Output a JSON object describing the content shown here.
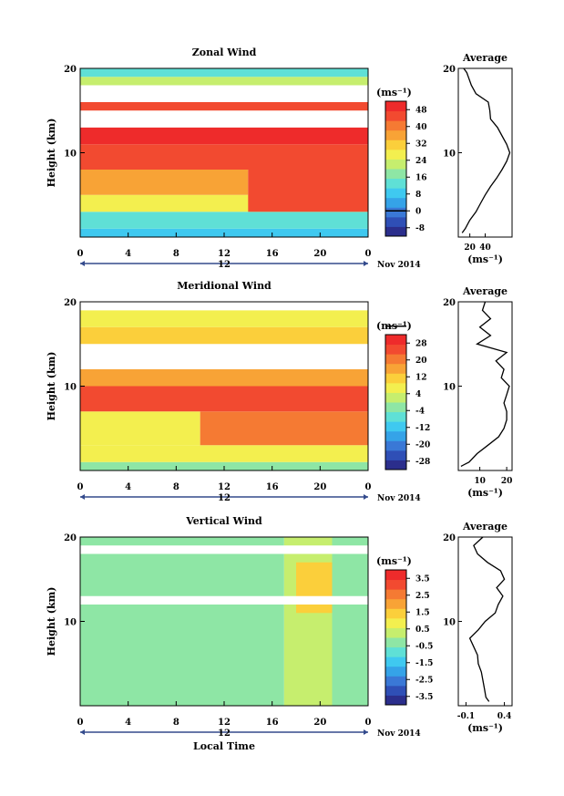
{
  "colors": {
    "scale": [
      "#2b2e8c",
      "#2f4fb6",
      "#3a78d6",
      "#35a3e8",
      "#3fc9f0",
      "#5fe0d6",
      "#8ee6a5",
      "#c6ee6e",
      "#f3ef4f",
      "#fbcf3b",
      "#f8a336",
      "#f57a33",
      "#f24a30",
      "#ee2b2b"
    ]
  },
  "shared": {
    "ylabel": "Height (km)",
    "time_ticks": [
      "0",
      "4",
      "8",
      "12",
      "16",
      "20",
      "0"
    ],
    "day_label": "12",
    "month_label": "Nov 2014",
    "unit_label": "(ms⁻¹)",
    "avg_title": "Average",
    "xlabel_bottom": "Local Time"
  },
  "chart_data": [
    {
      "type": "heatmap",
      "title": "Zonal Wind",
      "x_range": [
        0,
        24
      ],
      "ylim": [
        0,
        20
      ],
      "y_ticks": [
        "20",
        "10"
      ],
      "colorbar_ticks": [
        "48",
        "40",
        "32",
        "24",
        "16",
        "8",
        "0",
        "-8"
      ],
      "colorbar_range": [
        -12,
        52
      ],
      "zero_tick": "0",
      "cells": [
        {
          "t0": 0,
          "t1": 24,
          "z0": 0,
          "z1": 1,
          "v": 8
        },
        {
          "t0": 0,
          "t1": 24,
          "z0": 1,
          "z1": 3,
          "v": 14
        },
        {
          "t0": 0,
          "t1": 24,
          "z0": 3,
          "z1": 5,
          "v": 26
        },
        {
          "t0": 0,
          "t1": 14,
          "z0": 5,
          "z1": 8,
          "v": 34
        },
        {
          "t0": 14,
          "t1": 24,
          "z0": 3,
          "z1": 9,
          "v": 46
        },
        {
          "t0": 0,
          "t1": 24,
          "z0": 8,
          "z1": 11,
          "v": 44
        },
        {
          "t0": 0,
          "t1": 24,
          "z0": 11,
          "z1": 13,
          "v": 49
        },
        {
          "t0": 0,
          "t1": 24,
          "z0": 13,
          "z1": 15,
          "v": -100
        },
        {
          "t0": 0,
          "t1": 24,
          "z0": 15,
          "z1": 16,
          "v": 44
        },
        {
          "t0": 0,
          "t1": 24,
          "z0": 16,
          "z1": 18,
          "v": -100
        },
        {
          "t0": 0,
          "t1": 24,
          "z0": 18,
          "z1": 19,
          "v": 24
        },
        {
          "t0": 0,
          "t1": 24,
          "z0": 19,
          "z1": 20,
          "v": 14
        }
      ],
      "average": {
        "xlim": [
          5,
          75
        ],
        "x_ticks": [
          "20",
          "40"
        ],
        "x_tick_values": [
          20,
          40
        ],
        "xlabel": "(ms⁻¹)",
        "profile_z": [
          0.5,
          1,
          2,
          3,
          4,
          5,
          6,
          7,
          8,
          9,
          10,
          11,
          12,
          13,
          14,
          15,
          16,
          17,
          18,
          19,
          19.5,
          20
        ],
        "profile_v": [
          10,
          14,
          20,
          28,
          34,
          40,
          47,
          55,
          62,
          68,
          72,
          68,
          62,
          56,
          47,
          46,
          44,
          28,
          22,
          18,
          16,
          12
        ]
      }
    },
    {
      "type": "heatmap",
      "title": "Meridional Wind",
      "x_range": [
        0,
        24
      ],
      "ylim": [
        0,
        20
      ],
      "y_ticks": [
        "20",
        "10"
      ],
      "colorbar_ticks": [
        "28",
        "20",
        "12",
        "4",
        "-4",
        "-12",
        "-20",
        "-28"
      ],
      "colorbar_range": [
        -32,
        32
      ],
      "zero_tick": "0",
      "cells": [
        {
          "t0": 0,
          "t1": 24,
          "z0": 0,
          "z1": 1,
          "v": -2
        },
        {
          "t0": 0,
          "t1": 24,
          "z0": 1,
          "z1": 3,
          "v": 6
        },
        {
          "t0": 0,
          "t1": 10,
          "z0": 3,
          "z1": 7,
          "v": 9
        },
        {
          "t0": 10,
          "t1": 24,
          "z0": 3,
          "z1": 7,
          "v": 22
        },
        {
          "t0": 0,
          "t1": 24,
          "z0": 7,
          "z1": 10,
          "v": 27
        },
        {
          "t0": 0,
          "t1": 24,
          "z0": 10,
          "z1": 12,
          "v": 14
        },
        {
          "t0": 0,
          "t1": 24,
          "z0": 12,
          "z1": 15,
          "v": -100
        },
        {
          "t0": 0,
          "t1": 24,
          "z0": 15,
          "z1": 17,
          "v": 12
        },
        {
          "t0": 0,
          "t1": 24,
          "z0": 17,
          "z1": 19,
          "v": 6
        },
        {
          "t0": 0,
          "t1": 24,
          "z0": 19,
          "z1": 20,
          "v": -100
        }
      ],
      "average": {
        "xlim": [
          2,
          22
        ],
        "x_ticks": [
          "10",
          "20"
        ],
        "x_tick_values": [
          10,
          20
        ],
        "xlabel": "(ms⁻¹)",
        "profile_z": [
          0.5,
          1,
          2,
          3,
          4,
          5,
          6,
          7,
          8,
          9,
          10,
          11,
          12,
          13,
          14,
          15,
          16,
          17,
          18,
          19,
          20
        ],
        "profile_v": [
          3,
          6,
          9,
          13,
          17,
          19,
          20,
          20,
          19,
          20,
          21,
          18,
          19,
          16,
          20,
          9,
          14,
          10,
          14,
          11,
          12
        ]
      }
    },
    {
      "type": "heatmap",
      "title": "Vertical Wind",
      "x_range": [
        0,
        24
      ],
      "ylim": [
        0,
        20
      ],
      "y_ticks": [
        "20",
        "10"
      ],
      "colorbar_ticks": [
        "3.5",
        "2.5",
        "1.5",
        "0.5",
        "-0.5",
        "-1.5",
        "-2.5",
        "-3.5"
      ],
      "colorbar_range": [
        -4,
        4
      ],
      "zero_tick": "",
      "cells": [
        {
          "t0": 0,
          "t1": 17,
          "z0": 0,
          "z1": 20,
          "v": -0.4
        },
        {
          "t0": 17,
          "t1": 21,
          "z0": 0,
          "z1": 20,
          "v": 0.3
        },
        {
          "t0": 21,
          "t1": 24,
          "z0": 0,
          "z1": 20,
          "v": -0.2
        },
        {
          "t0": 18,
          "t1": 21,
          "z0": 11,
          "z1": 17,
          "v": 1.4
        },
        {
          "t0": 0,
          "t1": 24,
          "z0": 12,
          "z1": 13,
          "v": -100
        },
        {
          "t0": 0,
          "t1": 24,
          "z0": 18,
          "z1": 19,
          "v": -100
        }
      ],
      "average": {
        "xlim": [
          -0.2,
          0.5
        ],
        "x_ticks": [
          "-0.1",
          "0.4"
        ],
        "x_tick_values": [
          -0.1,
          0.4
        ],
        "xlabel": "(ms⁻¹)",
        "profile_z": [
          0.5,
          1,
          2,
          3,
          4,
          5,
          6,
          7,
          8,
          9,
          10,
          11,
          12,
          13,
          14,
          15,
          16,
          17,
          18,
          19,
          20
        ],
        "profile_v": [
          0.2,
          0.16,
          0.14,
          0.12,
          0.1,
          0.06,
          0.05,
          0.0,
          -0.05,
          0.06,
          0.15,
          0.28,
          0.32,
          0.38,
          0.3,
          0.4,
          0.35,
          0.18,
          0.05,
          0.0,
          0.12
        ]
      }
    }
  ]
}
